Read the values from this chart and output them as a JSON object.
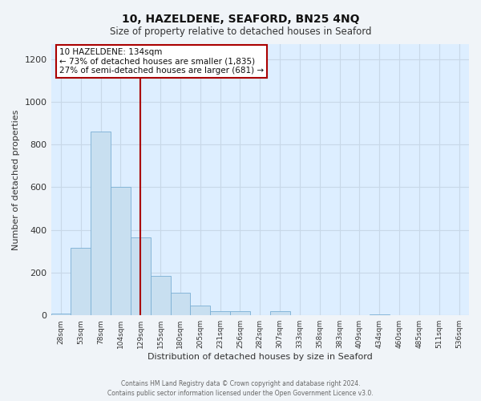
{
  "title": "10, HAZELDENE, SEAFORD, BN25 4NQ",
  "subtitle": "Size of property relative to detached houses in Seaford",
  "xlabel": "Distribution of detached houses by size in Seaford",
  "ylabel": "Number of detached properties",
  "categories": [
    "28sqm",
    "53sqm",
    "78sqm",
    "104sqm",
    "129sqm",
    "155sqm",
    "180sqm",
    "205sqm",
    "231sqm",
    "256sqm",
    "282sqm",
    "307sqm",
    "333sqm",
    "358sqm",
    "383sqm",
    "409sqm",
    "434sqm",
    "460sqm",
    "485sqm",
    "511sqm",
    "536sqm"
  ],
  "values": [
    10,
    315,
    860,
    600,
    365,
    185,
    105,
    47,
    20,
    20,
    0,
    20,
    0,
    0,
    0,
    0,
    3,
    0,
    0,
    0,
    0
  ],
  "highlight_index": 4,
  "bar_color": "#c8dff0",
  "bar_edge_color": "#7aafd4",
  "highlight_line_color": "#aa0000",
  "ylim": [
    0,
    1270
  ],
  "yticks": [
    0,
    200,
    400,
    600,
    800,
    1000,
    1200
  ],
  "annotation_title": "10 HAZELDENE: 134sqm",
  "annotation_line2": "← 73% of detached houses are smaller (1,835)",
  "annotation_line3": "27% of semi-detached houses are larger (681) →",
  "annotation_box_edge_color": "#aa0000",
  "footer_line1": "Contains HM Land Registry data © Crown copyright and database right 2024.",
  "footer_line2": "Contains public sector information licensed under the Open Government Licence v3.0.",
  "plot_bg_color": "#ddeeff",
  "fig_bg_color": "#f0f4f8",
  "grid_color": "#c8d8e8",
  "title_color": "#111111",
  "axis_label_color": "#333333",
  "tick_label_color": "#333333"
}
